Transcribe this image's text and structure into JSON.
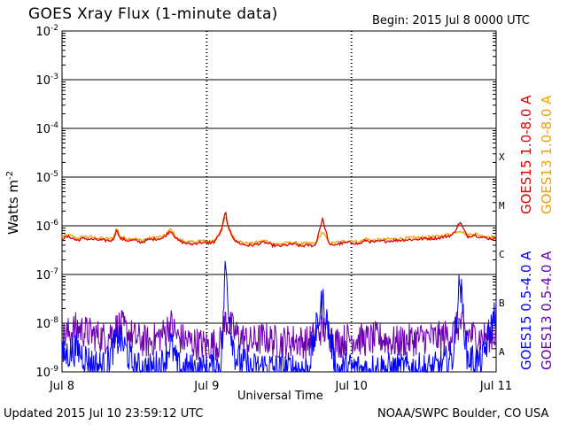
{
  "header": {
    "title": "GOES Xray Flux (1-minute data)",
    "begin": "Begin:  2015 Jul 8 0000 UTC"
  },
  "footer": {
    "updated": "Updated 2015 Jul 10 23:59:12 UTC",
    "credit": "NOAA/SWPC Boulder, CO USA"
  },
  "colors": {
    "goes15_long": "#e00000",
    "goes13_long": "#f0a000",
    "goes15_short": "#0000ff",
    "goes13_short": "#6a00b0"
  },
  "chart_data": {
    "type": "line",
    "title": "GOES Xray Flux (1-minute data)",
    "xlabel": "Universal Time",
    "ylabel": "Watts m",
    "ylabel_sup": "-2",
    "yscale": "log",
    "ylim": [
      1e-09,
      0.01
    ],
    "y_ticks": [
      {
        "value": -2,
        "base": "10",
        "exp": "-2"
      },
      {
        "value": -3,
        "base": "10",
        "exp": "-3"
      },
      {
        "value": -4,
        "base": "10",
        "exp": "-4"
      },
      {
        "value": -5,
        "base": "10",
        "exp": "-5"
      },
      {
        "value": -6,
        "base": "10",
        "exp": "-6"
      },
      {
        "value": -7,
        "base": "10",
        "exp": "-7"
      },
      {
        "value": -8,
        "base": "10",
        "exp": "-8"
      },
      {
        "value": -9,
        "base": "10",
        "exp": "-9"
      }
    ],
    "x_ticks": [
      "Jul 8",
      "Jul 9",
      "Jul 10",
      "Jul 11"
    ],
    "x_range_days": [
      "2015-07-08",
      "2015-07-11"
    ],
    "flare_classes": [
      {
        "label": "X",
        "flux": "1e-4"
      },
      {
        "label": "M",
        "flux": "1e-5"
      },
      {
        "label": "C",
        "flux": "1e-6"
      },
      {
        "label": "B",
        "flux": "1e-7"
      },
      {
        "label": "A",
        "flux": "1e-8"
      }
    ],
    "grid": true,
    "legend": [
      {
        "name": "GOES15 1.0-8.0 A",
        "color": "#e00000"
      },
      {
        "name": "GOES13 1.0-8.0 A",
        "color": "#f0a000"
      },
      {
        "name": "GOES15 0.5-4.0 A",
        "color": "#0000ff"
      },
      {
        "name": "GOES13 0.5-4.0 A",
        "color": "#6a00b0"
      }
    ],
    "series": [
      {
        "name": "GOES13 1.0-8.0 A",
        "color": "#f0a000",
        "x": [
          0,
          0.05,
          0.1,
          0.15,
          0.2,
          0.25,
          0.3,
          0.35,
          0.38,
          0.4,
          0.45,
          0.5,
          0.55,
          0.6,
          0.7,
          0.75,
          0.8,
          0.85,
          0.9,
          0.95,
          1.0,
          1.05,
          1.1,
          1.13,
          1.15,
          1.2,
          1.25,
          1.3,
          1.35,
          1.4,
          1.45,
          1.5,
          1.55,
          1.6,
          1.65,
          1.7,
          1.75,
          1.8,
          1.85,
          1.9,
          1.95,
          2.0,
          2.05,
          2.1,
          2.15,
          2.2,
          2.3,
          2.4,
          2.5,
          2.6,
          2.65,
          2.7,
          2.75,
          2.8,
          2.85,
          2.9,
          2.95,
          3.0
        ],
        "y": [
          6e-07,
          6.5e-07,
          5.5e-07,
          6e-07,
          5.8e-07,
          5.6e-07,
          5.4e-07,
          5.5e-07,
          9e-07,
          6e-07,
          5.5e-07,
          5.5e-07,
          5e-07,
          5.6e-07,
          6e-07,
          8.5e-07,
          5.4e-07,
          4.8e-07,
          4.6e-07,
          5e-07,
          4.8e-07,
          5e-07,
          8e-07,
          1.6e-06,
          9e-07,
          5.2e-07,
          4.5e-07,
          4.3e-07,
          4.6e-07,
          5e-07,
          4.4e-07,
          4.2e-07,
          4.4e-07,
          4.6e-07,
          4.2e-07,
          4.4e-07,
          4.3e-07,
          7.5e-07,
          4.3e-07,
          4.6e-07,
          4.8e-07,
          5e-07,
          4.6e-07,
          5.4e-07,
          5e-07,
          5.2e-07,
          5.4e-07,
          5.6e-07,
          5.8e-07,
          6e-07,
          6.5e-07,
          7e-07,
          8e-07,
          6.5e-07,
          7e-07,
          6.2e-07,
          6e-07,
          5.8e-07
        ]
      },
      {
        "name": "GOES15 1.0-8.0 A",
        "color": "#e00000",
        "x": [
          0,
          0.05,
          0.1,
          0.15,
          0.2,
          0.25,
          0.3,
          0.35,
          0.38,
          0.4,
          0.45,
          0.5,
          0.55,
          0.6,
          0.7,
          0.75,
          0.8,
          0.85,
          0.9,
          0.95,
          1.0,
          1.05,
          1.1,
          1.13,
          1.15,
          1.2,
          1.25,
          1.3,
          1.35,
          1.4,
          1.45,
          1.5,
          1.55,
          1.6,
          1.65,
          1.7,
          1.75,
          1.8,
          1.85,
          1.9,
          1.95,
          2.0,
          2.05,
          2.1,
          2.15,
          2.2,
          2.3,
          2.4,
          2.5,
          2.6,
          2.65,
          2.7,
          2.75,
          2.8,
          2.85,
          2.9,
          2.95,
          3.0
        ],
        "y": [
          5.5e-07,
          6e-07,
          5e-07,
          5.5e-07,
          5.3e-07,
          5.1e-07,
          5e-07,
          5e-07,
          8.5e-07,
          5.5e-07,
          5e-07,
          5e-07,
          4.6e-07,
          5.2e-07,
          5.6e-07,
          8e-07,
          5e-07,
          4.4e-07,
          4.2e-07,
          4.6e-07,
          4.4e-07,
          4.6e-07,
          7.5e-07,
          2e-06,
          8.5e-07,
          4.8e-07,
          4.1e-07,
          3.9e-07,
          4.2e-07,
          4.6e-07,
          4e-07,
          3.8e-07,
          4e-07,
          4.2e-07,
          3.8e-07,
          4e-07,
          3.9e-07,
          1.4e-06,
          3.9e-07,
          4.2e-07,
          4.4e-07,
          4.6e-07,
          4.2e-07,
          5e-07,
          4.6e-07,
          4.8e-07,
          5e-07,
          5.2e-07,
          5.4e-07,
          5.6e-07,
          6e-07,
          6.5e-07,
          1.2e-06,
          6e-07,
          6.5e-07,
          5.8e-07,
          5.5e-07,
          5.3e-07
        ]
      },
      {
        "name": "GOES13 0.5-4.0 A",
        "color": "#6a00b0",
        "x": [
          0,
          0.1,
          0.2,
          0.3,
          0.35,
          0.4,
          0.5,
          0.6,
          0.7,
          0.75,
          0.8,
          0.9,
          1.0,
          1.1,
          1.13,
          1.2,
          1.3,
          1.4,
          1.5,
          1.6,
          1.7,
          1.8,
          1.9,
          2.0,
          2.1,
          2.2,
          2.3,
          2.4,
          2.5,
          2.6,
          2.7,
          2.75,
          2.8,
          2.9,
          3.0
        ],
        "y": [
          5e-09,
          8e-09,
          6e-09,
          5e-09,
          7e-09,
          9e-09,
          5e-09,
          4e-09,
          6e-09,
          1e-08,
          5e-09,
          4e-09,
          3.5e-09,
          4e-09,
          1.2e-08,
          6e-09,
          4e-09,
          5e-09,
          4e-09,
          4.5e-09,
          4e-09,
          8e-09,
          4e-09,
          5e-09,
          4.5e-09,
          5e-09,
          4e-09,
          4.5e-09,
          5e-09,
          5e-09,
          6e-09,
          1e-08,
          6e-09,
          5e-09,
          6e-09
        ]
      },
      {
        "name": "GOES15 0.5-4.0 A",
        "color": "#0000ff",
        "x": [
          0,
          0.1,
          0.2,
          0.3,
          0.35,
          0.4,
          0.5,
          0.6,
          0.7,
          0.75,
          0.8,
          0.9,
          1.0,
          1.1,
          1.13,
          1.16,
          1.2,
          1.3,
          1.4,
          1.5,
          1.6,
          1.7,
          1.8,
          1.9,
          2.0,
          2.1,
          2.2,
          2.3,
          2.4,
          2.5,
          2.6,
          2.7,
          2.75,
          2.8,
          2.9,
          3.0
        ],
        "y": [
          2e-09,
          3e-09,
          1.5e-09,
          1.2e-09,
          3e-09,
          5e-09,
          1.2e-09,
          1.1e-09,
          1.5e-09,
          4e-09,
          1.2e-09,
          1.1e-09,
          1.1e-09,
          1.5e-09,
          1.7e-07,
          1e-08,
          2e-09,
          1.1e-09,
          1.3e-09,
          1.1e-09,
          1.2e-09,
          1.1e-09,
          3e-08,
          1.1e-09,
          1.2e-09,
          1.1e-09,
          1.2e-09,
          1.1e-09,
          1.2e-09,
          1.1e-09,
          1.2e-09,
          2e-09,
          8e-08,
          2e-09,
          1.5e-09,
          2e-08
        ]
      }
    ]
  }
}
